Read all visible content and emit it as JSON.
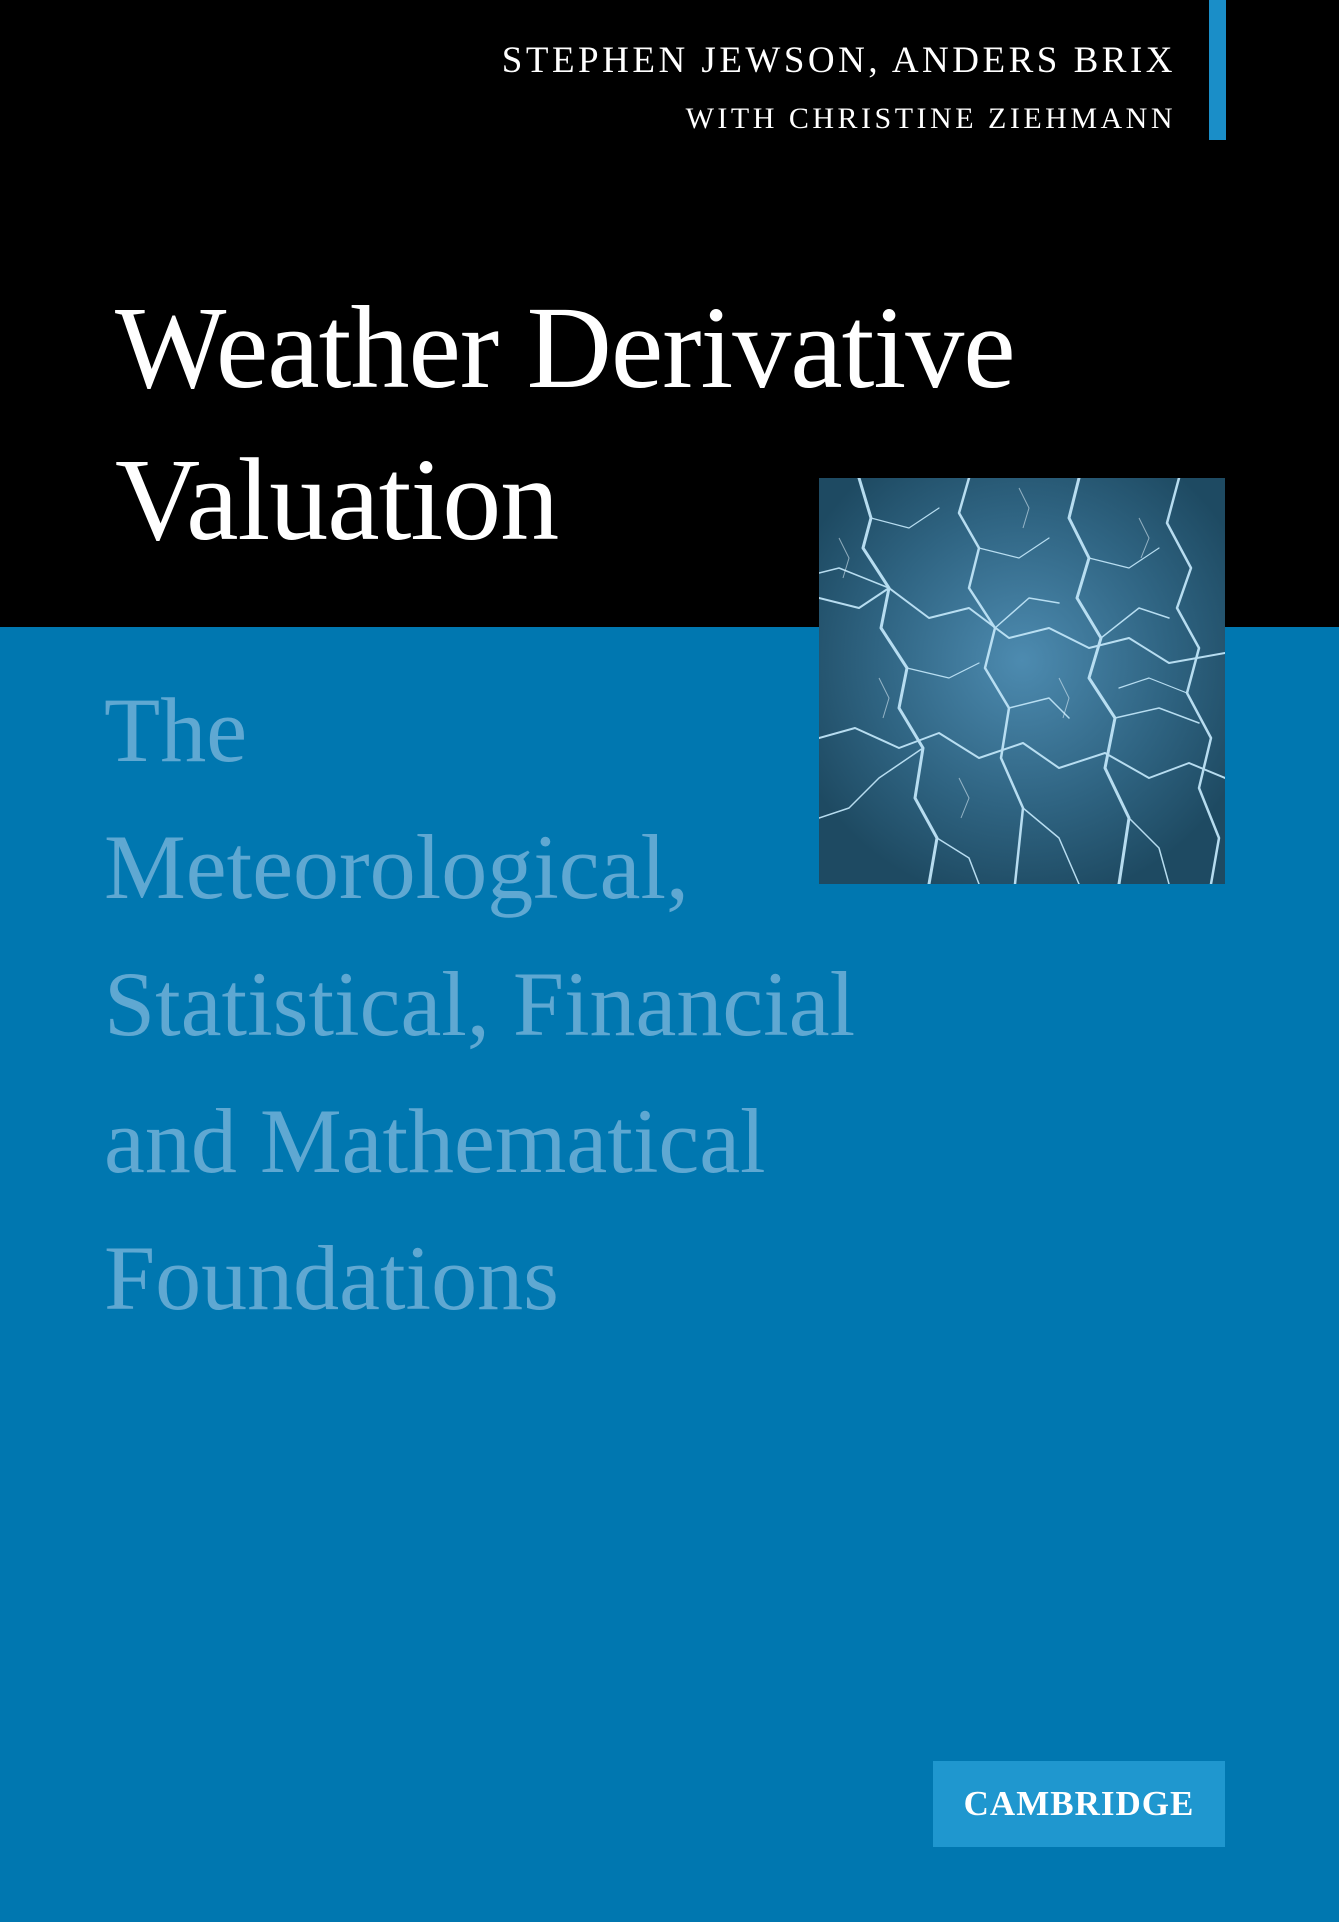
{
  "authors": {
    "line1": "STEPHEN JEWSON, ANDERS BRIX",
    "line2": "WITH CHRISTINE ZIEHMANN"
  },
  "title": {
    "line1": "Weather Derivative",
    "line2": "Valuation"
  },
  "subtitle": {
    "lines": [
      "The",
      "Meteorological,",
      "Statistical, Financial",
      "and Mathematical",
      "Foundations"
    ]
  },
  "cover_image": {
    "icon": "lightning-image"
  },
  "publisher": {
    "name": "CAMBRIDGE"
  },
  "colors": {
    "background_blue": "#0077b0",
    "top_band": "#000000",
    "subtitle_text": "#5fa8d2",
    "accent_bar": "#1a8ec8",
    "publisher_box": "#1f97cf"
  }
}
